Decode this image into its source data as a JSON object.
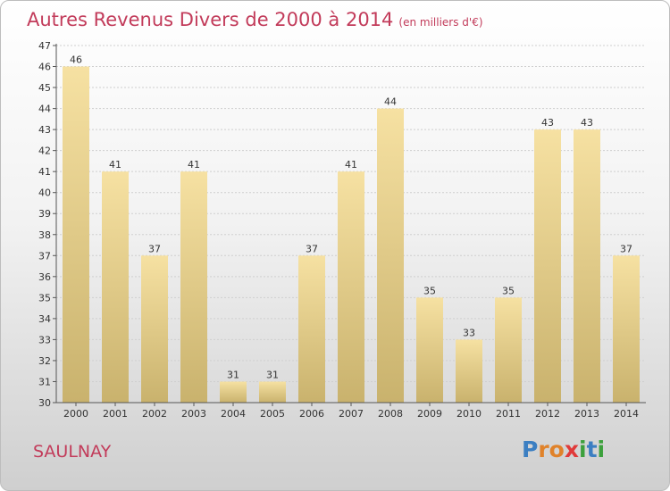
{
  "title": "Autres Revenus Divers de 2000 à 2014",
  "subtitle": "(en milliers d'€)",
  "location": "SAULNAY",
  "brand": {
    "letters": [
      "P",
      "r",
      "o",
      "x",
      "i",
      "t",
      "i"
    ],
    "colors": [
      "#3c7fc2",
      "#e0822a",
      "#e0822a",
      "#e03a3a",
      "#3ca03c",
      "#3c7fc2",
      "#3ca03c"
    ]
  },
  "colors": {
    "title": "#c23b5a",
    "bar_light": "#f6e1a2",
    "bar_dark": "#c9b26d",
    "grid": "#cfcfcf"
  },
  "chart_data": {
    "type": "bar",
    "title": "Autres Revenus Divers de 2000 à 2014",
    "subtitle": "(en milliers d'€)",
    "categories": [
      "2000",
      "2001",
      "2002",
      "2003",
      "2004",
      "2005",
      "2006",
      "2007",
      "2008",
      "2009",
      "2010",
      "2011",
      "2012",
      "2013",
      "2014"
    ],
    "values": [
      46,
      41,
      37,
      41,
      31,
      31,
      37,
      41,
      44,
      35,
      33,
      35,
      43,
      43,
      37
    ],
    "ylim": [
      30,
      47
    ],
    "yticks": [
      30,
      31,
      32,
      33,
      34,
      35,
      36,
      37,
      38,
      39,
      40,
      41,
      42,
      43,
      44,
      45,
      46,
      47
    ],
    "grid": true
  }
}
